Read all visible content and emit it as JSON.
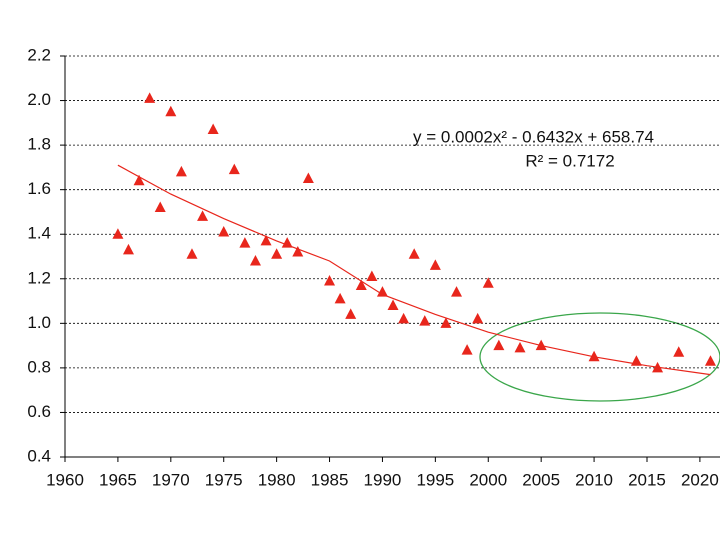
{
  "chart_data": {
    "type": "scatter",
    "x": [
      1965,
      1966,
      1967,
      1968,
      1969,
      1970,
      1971,
      1972,
      1973,
      1974,
      1975,
      1976,
      1977,
      1978,
      1979,
      1980,
      1981,
      1982,
      1983,
      1985,
      1986,
      1987,
      1988,
      1989,
      1990,
      1991,
      1992,
      1993,
      1994,
      1995,
      1996,
      1997,
      1998,
      1999,
      2000,
      2001,
      2003,
      2005,
      2010,
      2014,
      2016,
      2018,
      2021
    ],
    "values": [
      1.4,
      1.33,
      1.64,
      2.01,
      1.52,
      1.95,
      1.68,
      1.31,
      1.48,
      1.87,
      1.41,
      1.69,
      1.36,
      1.28,
      1.37,
      1.31,
      1.36,
      1.32,
      1.65,
      1.19,
      1.11,
      1.04,
      1.17,
      1.21,
      1.14,
      1.08,
      1.02,
      1.31,
      1.01,
      1.26,
      1.0,
      1.14,
      0.88,
      1.02,
      1.18,
      0.9,
      0.89,
      0.9,
      0.85,
      0.83,
      0.8,
      0.87,
      0.83
    ],
    "color": "#e8261c",
    "trendline": {
      "x": [
        1965,
        1970,
        1975,
        1980,
        1985,
        1990,
        1995,
        2000,
        2005,
        2010,
        2015,
        2021
      ],
      "values": [
        1.71,
        1.58,
        1.47,
        1.37,
        1.28,
        1.13,
        1.04,
        0.96,
        0.9,
        0.85,
        0.81,
        0.77
      ],
      "color": "#e8261c"
    },
    "equation": "y = 0.0002x² - 0.6432x + 658.74",
    "r_squared": "R² = 0.7172",
    "xlim": [
      1960,
      2021.9
    ],
    "xticks": [
      1960,
      1965,
      1970,
      1975,
      1980,
      1985,
      1990,
      1995,
      2000,
      2005,
      2010,
      2015,
      2020
    ],
    "ylim": [
      0.4,
      2.2
    ],
    "yticks": [
      0.4,
      0.6,
      0.8,
      {
        "value": 1.0,
        "label": "1.0"
      },
      1.2,
      1.4,
      1.6,
      1.8,
      {
        "value": 2.0,
        "label": "2.0"
      },
      2.2
    ],
    "grid": true
  }
}
